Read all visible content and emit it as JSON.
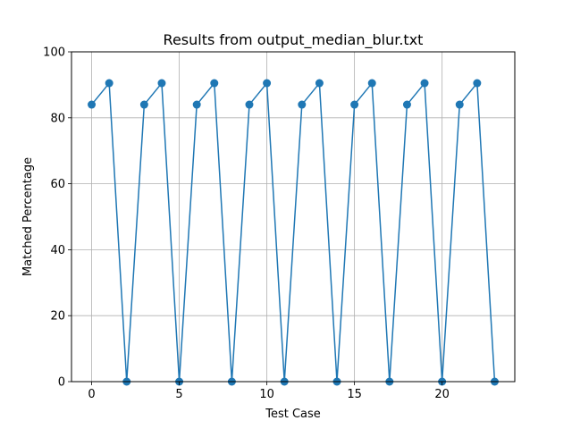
{
  "chart_data": {
    "type": "line",
    "title": "Results from output_median_blur.txt",
    "xlabel": "Test Case",
    "ylabel": "Matched Percentage",
    "xlim": [
      -1.15,
      24.15
    ],
    "ylim": [
      0,
      100
    ],
    "xticks": [
      0,
      5,
      10,
      15,
      20
    ],
    "yticks": [
      0,
      20,
      40,
      60,
      80,
      100
    ],
    "grid": true,
    "marker": "circle",
    "color": "#1f77b4",
    "series": [
      {
        "x": [
          0,
          1,
          2,
          3,
          4,
          5,
          6,
          7,
          8,
          9,
          10,
          11,
          12,
          13,
          14,
          15,
          16,
          17,
          18,
          19,
          20,
          21,
          22,
          23
        ],
        "values": [
          84,
          90.5,
          0,
          84,
          90.5,
          0,
          84,
          90.5,
          0,
          84,
          90.5,
          0,
          84,
          90.5,
          0,
          84,
          90.5,
          0,
          84,
          90.5,
          0,
          84,
          90.5,
          0
        ]
      }
    ]
  }
}
